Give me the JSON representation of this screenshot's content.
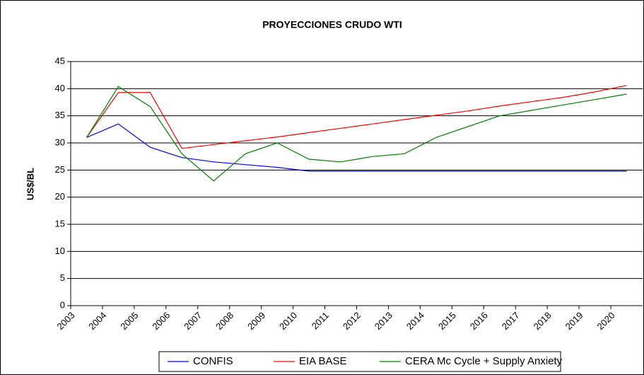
{
  "chart_data": {
    "type": "line",
    "title": "PROYECCIONES CRUDO WTI",
    "y_label": "US$/BL",
    "x": [
      2003.5,
      2004.5,
      2005.5,
      2006.5,
      2007.5,
      2008.5,
      2009.5,
      2010.5,
      2011.5,
      2012.5,
      2013.5,
      2014.5,
      2015.5,
      2016.5,
      2017.5,
      2018.5,
      2019.5,
      2020.5
    ],
    "xlim": [
      2003,
      2021
    ],
    "xticks": [
      2003,
      2004,
      2005,
      2006,
      2007,
      2008,
      2009,
      2010,
      2011,
      2012,
      2013,
      2014,
      2015,
      2016,
      2017,
      2018,
      2019,
      2020
    ],
    "ylim": [
      0,
      45
    ],
    "yticks": [
      0,
      5,
      10,
      15,
      20,
      25,
      30,
      35,
      40,
      45
    ],
    "grid": true,
    "legend": "bottom",
    "series": [
      {
        "name": "CONFIS",
        "color": "#0000ff",
        "values": [
          31,
          33.5,
          29.2,
          27.3,
          26.5,
          26,
          25.5,
          24.8,
          24.8,
          24.8,
          24.8,
          24.8,
          24.8,
          24.8,
          24.8,
          24.8,
          24.8,
          24.8
        ]
      },
      {
        "name": "EIA BASE",
        "color": "#ff0000",
        "values": [
          31,
          39.3,
          39.3,
          29,
          29.7,
          30.4,
          31.1,
          31.9,
          32.7,
          33.5,
          34.3,
          35.1,
          35.9,
          36.8,
          37.6,
          38.4,
          39.4,
          40.6
        ]
      },
      {
        "name": "CERA Mc Cycle + Supply Anxiety",
        "color": "#008000",
        "values": [
          31,
          40.4,
          36.7,
          28,
          23,
          28,
          30,
          27,
          26.5,
          27.5,
          28,
          31,
          33,
          35,
          36,
          37,
          38,
          39
        ]
      }
    ]
  }
}
